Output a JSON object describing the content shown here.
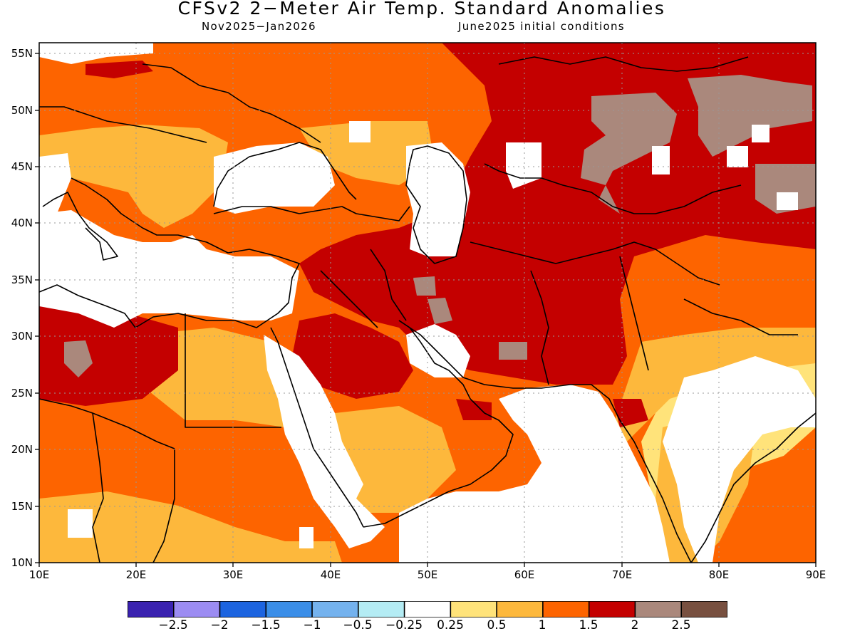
{
  "title": "CFSv2 2−Meter Air Temp. Standard Anomalies",
  "subtitle_left": "Nov2025−Jan2026",
  "subtitle_right": "June2025 initial conditions",
  "map": {
    "lon_range": [
      10,
      90
    ],
    "lat_range": [
      10,
      56
    ],
    "grid": true,
    "lon_labels": [
      "10E",
      "20E",
      "30E",
      "40E",
      "50E",
      "60E",
      "70E",
      "80E",
      "90E"
    ],
    "lat_labels": [
      "10N",
      "15N",
      "20N",
      "25N",
      "30N",
      "35N",
      "40N",
      "45N",
      "50N",
      "55N"
    ]
  },
  "colorbar": {
    "colors": [
      "#3a22b0",
      "#9c8cf2",
      "#1c64e0",
      "#3a8ee8",
      "#74b2ee",
      "#b4ecf4",
      "#ffffff",
      "#ffe37a",
      "#fdb83c",
      "#fd6400",
      "#c40000",
      "#aa887c",
      "#785040"
    ],
    "labels": [
      "−2.5",
      "−2",
      "−1.5",
      "−1",
      "−0.5",
      "−0.25",
      "0.25",
      "0.5",
      "1",
      "1.5",
      "2",
      "2.5"
    ]
  },
  "colors": {
    "land_base": "#fd6400",
    "yellow": "#ffe37a",
    "light_orange": "#fdb83c",
    "red": "#c40000",
    "brown": "#aa887c",
    "white": "#ffffff"
  }
}
